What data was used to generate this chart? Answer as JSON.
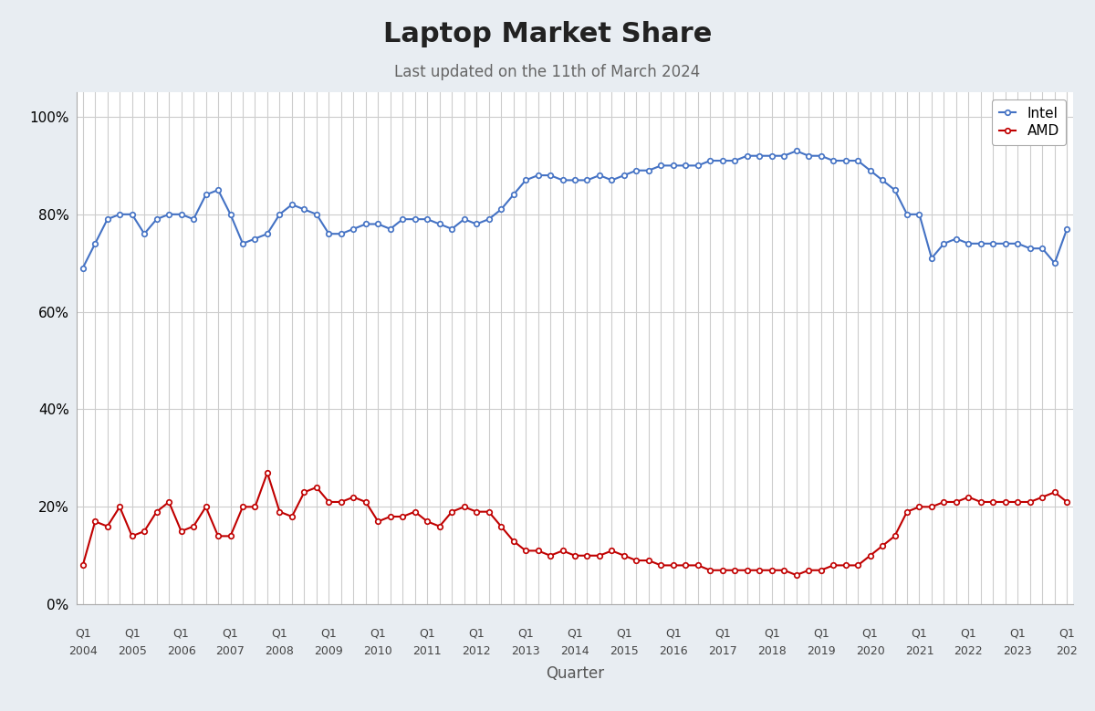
{
  "title": "Laptop Market Share",
  "subtitle": "Last updated on the 11th of March 2024",
  "xlabel": "Quarter",
  "background_color": "#e8edf2",
  "plot_bg_color": "#ffffff",
  "intel_color": "#4472c4",
  "amd_color": "#c00000",
  "intel_label": "Intel",
  "amd_label": "AMD",
  "ylim": [
    0,
    105
  ],
  "yticks": [
    0,
    20,
    40,
    60,
    80,
    100
  ],
  "intel": [
    69,
    74,
    79,
    80,
    80,
    76,
    79,
    80,
    80,
    79,
    84,
    85,
    80,
    74,
    75,
    76,
    80,
    82,
    81,
    80,
    76,
    76,
    77,
    78,
    78,
    77,
    79,
    79,
    79,
    78,
    77,
    79,
    78,
    79,
    81,
    84,
    87,
    88,
    88,
    87,
    87,
    87,
    88,
    87,
    88,
    89,
    89,
    90,
    90,
    90,
    90,
    91,
    91,
    91,
    92,
    92,
    92,
    92,
    93,
    92,
    92,
    91,
    91,
    91,
    89,
    87,
    85,
    80,
    80,
    71,
    74,
    75,
    74,
    74,
    74,
    74,
    74,
    73,
    73,
    70,
    77
  ],
  "amd": [
    8,
    17,
    16,
    20,
    14,
    15,
    19,
    21,
    15,
    16,
    20,
    14,
    14,
    20,
    20,
    27,
    19,
    18,
    23,
    24,
    21,
    21,
    22,
    21,
    17,
    18,
    18,
    19,
    17,
    16,
    19,
    20,
    19,
    19,
    16,
    13,
    11,
    11,
    10,
    11,
    10,
    10,
    10,
    11,
    10,
    9,
    9,
    8,
    8,
    8,
    8,
    7,
    7,
    7,
    7,
    7,
    7,
    7,
    6,
    7,
    7,
    8,
    8,
    8,
    10,
    12,
    14,
    19,
    20,
    20,
    21,
    21,
    22,
    21,
    21,
    21,
    21,
    21,
    22,
    23,
    21
  ],
  "x_label_years": [
    "2004",
    "2005",
    "2006",
    "2007",
    "2008",
    "2009",
    "2010",
    "2011",
    "2012",
    "2013",
    "2014",
    "2015",
    "2016",
    "2017",
    "2018",
    "2019",
    "2020",
    "2021",
    "2022",
    "2023",
    "202"
  ]
}
